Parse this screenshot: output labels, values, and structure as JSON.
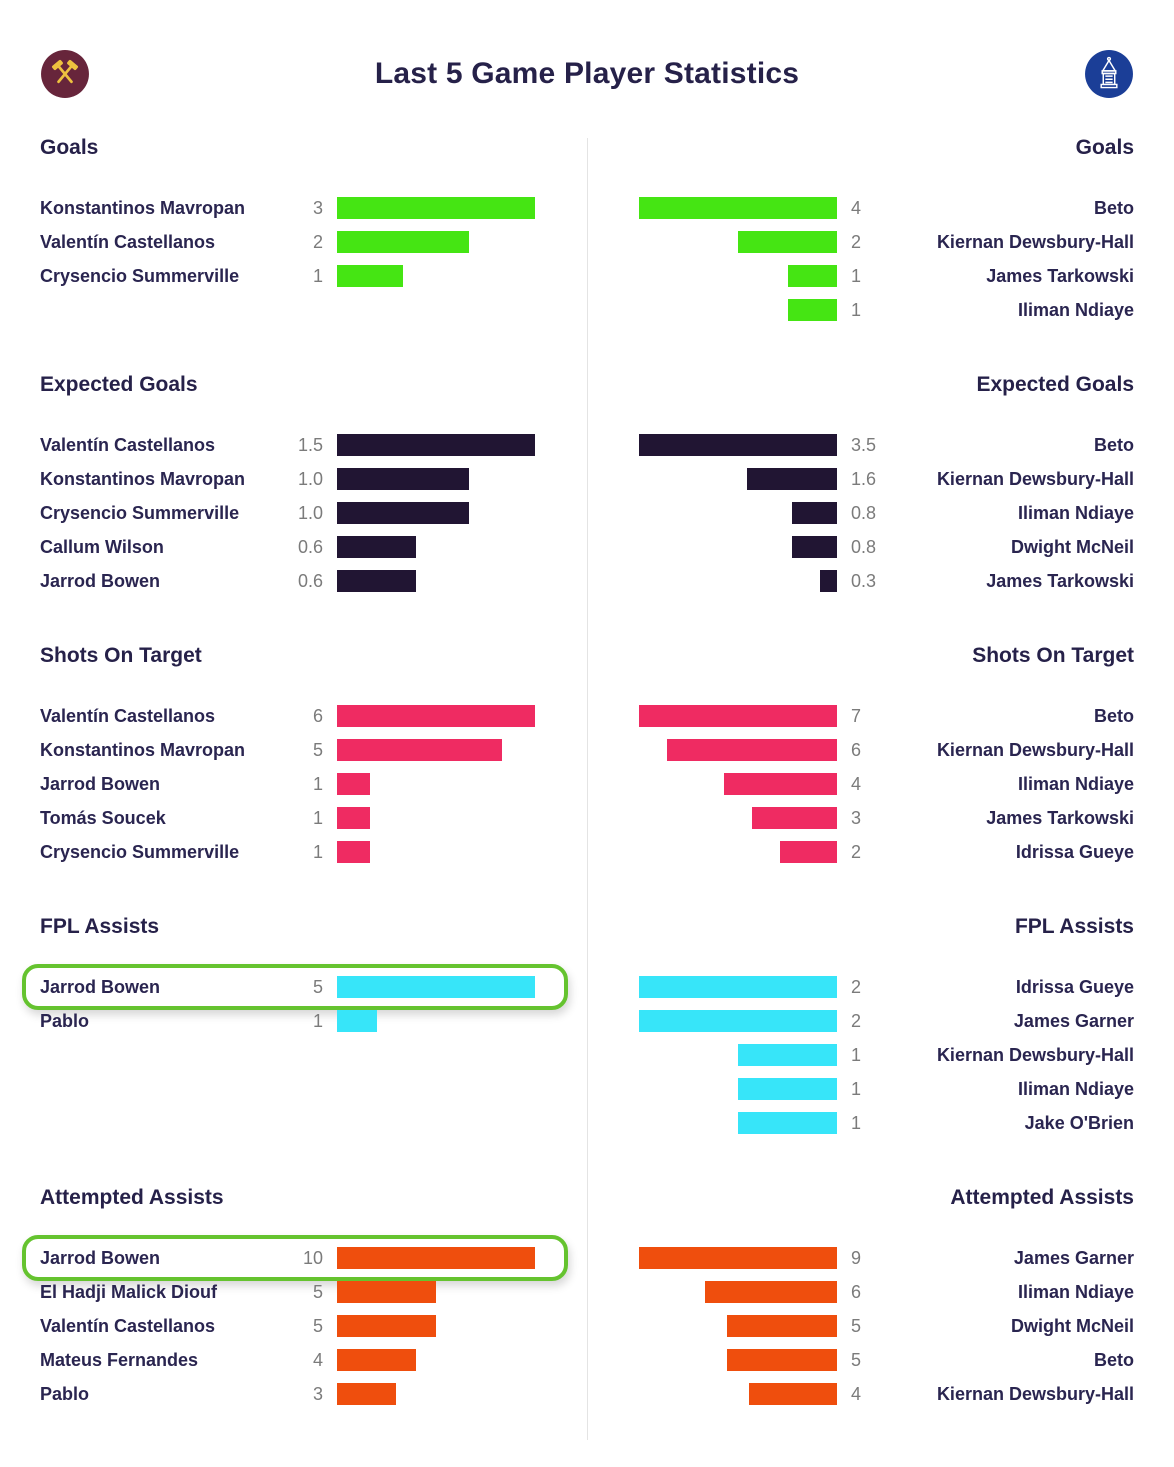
{
  "header": {
    "title": "Last 5 Game Player Statistics",
    "home_crest": "west-ham-united",
    "away_crest": "everton"
  },
  "colors": {
    "text": "#262149",
    "player_text": "#2a2550",
    "value_text": "#7b7b7b",
    "divider": "#e4e4e4",
    "highlight_ring": "#65c32f",
    "goals_bar": "#45e513",
    "expected_goals_bar": "#211533",
    "shots_on_target_bar": "#ef2b62",
    "fpl_assists_bar": "#37e5f9",
    "attempted_assists_bar": "#ef4e0d",
    "home_crest_bg": "#67253b",
    "home_crest_fg": "#eec23f",
    "away_crest_bg": "#1b3e97",
    "away_crest_fg": "#ffffff"
  },
  "chart_data": {
    "type": "bar",
    "orientation": "horizontal",
    "title": "Last 5 Game Player Statistics",
    "layout": "mirrored two-team columns; bars normalized to each column's max value per section; left bars grow rightward, right bars grow leftward",
    "teams": {
      "left": "West Ham United",
      "right": "Everton"
    },
    "sections": [
      {
        "label": "Goals",
        "color": "#45e513",
        "left": {
          "rows": [
            {
              "player": "Konstantinos Mavropan",
              "value": "3"
            },
            {
              "player": "Valentín Castellanos",
              "value": "2"
            },
            {
              "player": "Crysencio Summerville",
              "value": "1"
            }
          ]
        },
        "right": {
          "rows": [
            {
              "player": "Beto",
              "value": "4"
            },
            {
              "player": "Kiernan Dewsbury-Hall",
              "value": "2"
            },
            {
              "player": "James Tarkowski",
              "value": "1"
            },
            {
              "player": "Iliman Ndiaye",
              "value": "1"
            }
          ]
        }
      },
      {
        "label": "Expected Goals",
        "color": "#211533",
        "left": {
          "rows": [
            {
              "player": "Valentín Castellanos",
              "value": "1.5"
            },
            {
              "player": "Konstantinos Mavropan",
              "value": "1.0"
            },
            {
              "player": "Crysencio Summerville",
              "value": "1.0"
            },
            {
              "player": "Callum Wilson",
              "value": "0.6"
            },
            {
              "player": "Jarrod Bowen",
              "value": "0.6"
            }
          ]
        },
        "right": {
          "rows": [
            {
              "player": "Beto",
              "value": "3.5"
            },
            {
              "player": "Kiernan Dewsbury-Hall",
              "value": "1.6"
            },
            {
              "player": "Iliman Ndiaye",
              "value": "0.8"
            },
            {
              "player": "Dwight McNeil",
              "value": "0.8"
            },
            {
              "player": "James Tarkowski",
              "value": "0.3"
            }
          ]
        }
      },
      {
        "label": "Shots On Target",
        "color": "#ef2b62",
        "left": {
          "rows": [
            {
              "player": "Valentín Castellanos",
              "value": "6"
            },
            {
              "player": "Konstantinos Mavropan",
              "value": "5"
            },
            {
              "player": "Jarrod Bowen",
              "value": "1"
            },
            {
              "player": "Tomás Soucek",
              "value": "1"
            },
            {
              "player": "Crysencio Summerville",
              "value": "1"
            }
          ]
        },
        "right": {
          "rows": [
            {
              "player": "Beto",
              "value": "7"
            },
            {
              "player": "Kiernan Dewsbury-Hall",
              "value": "6"
            },
            {
              "player": "Iliman Ndiaye",
              "value": "4"
            },
            {
              "player": "James Tarkowski",
              "value": "3"
            },
            {
              "player": "Idrissa Gueye",
              "value": "2"
            }
          ]
        }
      },
      {
        "label": "FPL Assists",
        "color": "#37e5f9",
        "left": {
          "rows": [
            {
              "player": "Jarrod Bowen",
              "value": "5",
              "highlight": true
            },
            {
              "player": "Pablo",
              "value": "1"
            }
          ]
        },
        "right": {
          "rows": [
            {
              "player": "Idrissa Gueye",
              "value": "2"
            },
            {
              "player": "James Garner",
              "value": "2"
            },
            {
              "player": "Kiernan Dewsbury-Hall",
              "value": "1"
            },
            {
              "player": "Iliman Ndiaye",
              "value": "1"
            },
            {
              "player": "Jake O'Brien",
              "value": "1"
            }
          ]
        }
      },
      {
        "label": "Attempted Assists",
        "color": "#ef4e0d",
        "left": {
          "rows": [
            {
              "player": "Jarrod Bowen",
              "value": "10",
              "highlight": true
            },
            {
              "player": "El Hadji Malick Diouf",
              "value": "5"
            },
            {
              "player": "Valentín Castellanos",
              "value": "5"
            },
            {
              "player": "Mateus Fernandes",
              "value": "4"
            },
            {
              "player": "Pablo",
              "value": "3"
            }
          ]
        },
        "right": {
          "rows": [
            {
              "player": "James Garner",
              "value": "9"
            },
            {
              "player": "Iliman Ndiaye",
              "value": "6"
            },
            {
              "player": "Dwight McNeil",
              "value": "5"
            },
            {
              "player": "Beto",
              "value": "5"
            },
            {
              "player": "Kiernan Dewsbury-Hall",
              "value": "4"
            }
          ]
        }
      }
    ]
  }
}
